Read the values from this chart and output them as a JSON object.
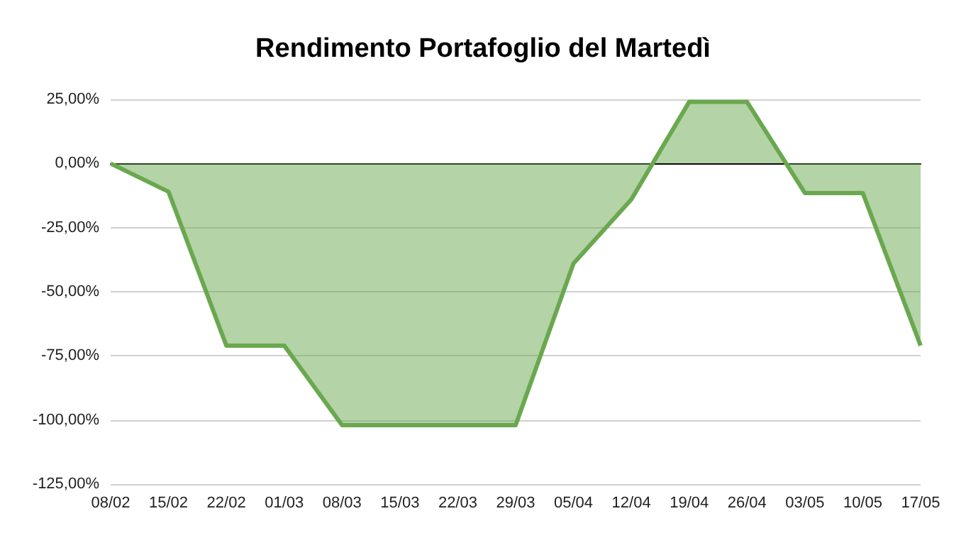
{
  "chart_data": {
    "type": "area",
    "title": "Rendimento Portafoglio del Martedì",
    "categories": [
      "08/02",
      "15/02",
      "22/02",
      "01/03",
      "08/03",
      "15/03",
      "22/03",
      "29/03",
      "05/04",
      "12/04",
      "19/04",
      "26/04",
      "03/05",
      "10/05",
      "17/05"
    ],
    "series": [
      {
        "color": "#6aa84f",
        "values": [
          0,
          -11,
          -71,
          -71,
          -102,
          -102,
          -102,
          -102,
          -39,
          -14,
          24,
          24,
          -11.5,
          -11.5,
          -71
        ]
      }
    ],
    "ylim": [
      -125,
      25
    ],
    "yticks": [
      {
        "value": 25,
        "label": "25,00%"
      },
      {
        "value": 0,
        "label": "0,00%"
      },
      {
        "value": -25,
        "label": "-25,00%"
      },
      {
        "value": -50,
        "label": "-50,00%"
      },
      {
        "value": -75,
        "label": "-75,00%"
      },
      {
        "value": -100,
        "label": "-100,00%"
      },
      {
        "value": -125,
        "label": "-125,00%"
      }
    ],
    "grid": "y"
  }
}
